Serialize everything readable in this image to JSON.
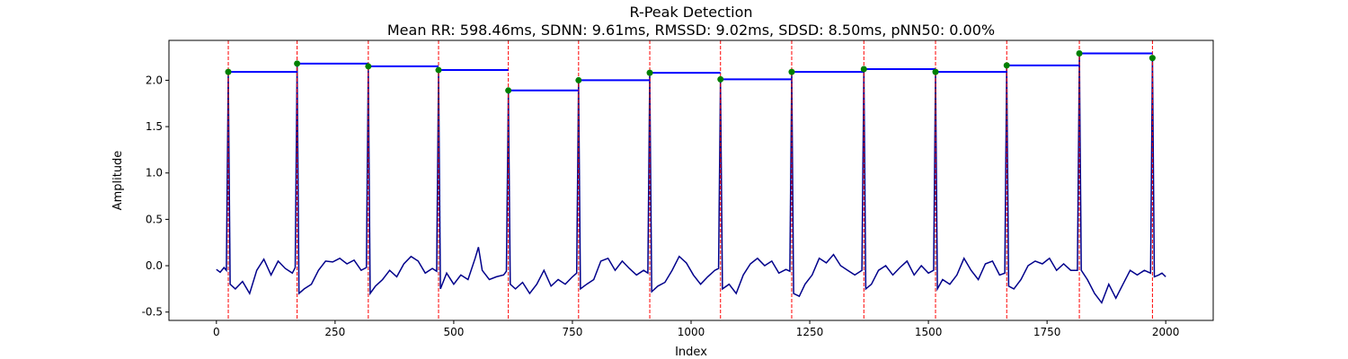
{
  "chart_data": {
    "type": "line",
    "title": "R-Peak Detection",
    "subtitle": "Mean RR: 598.46ms, SDNN: 9.61ms, RMSSD: 9.02ms, SDSD: 8.50ms, pNN50: 0.00%",
    "x_label": "Index",
    "y_label": "Amplitude",
    "xlim": [
      -100,
      2100
    ],
    "ylim": [
      -0.59,
      2.43
    ],
    "xticks": [
      0,
      250,
      500,
      750,
      1000,
      1250,
      1500,
      1750,
      2000
    ],
    "yticks": [
      -0.5,
      {
        "value": 0,
        "label": "0.0"
      },
      0.5,
      {
        "value": 1,
        "label": "1.0"
      },
      1.5,
      {
        "value": 2,
        "label": "2.0"
      }
    ],
    "series": [
      {
        "color": "#00008b",
        "x": [
          0,
          8,
          16,
          21,
          25,
          29,
          40,
          55,
          70,
          85,
          100,
          115,
          130,
          145,
          160,
          166,
          170,
          174,
          185,
          200,
          215,
          230,
          245,
          260,
          275,
          290,
          305,
          316,
          320,
          324,
          335,
          350,
          365,
          380,
          395,
          410,
          425,
          440,
          455,
          464,
          468,
          472,
          485,
          500,
          515,
          530,
          545,
          552,
          560,
          575,
          590,
          605,
          611,
          615,
          619,
          630,
          645,
          660,
          675,
          690,
          705,
          720,
          735,
          750,
          759,
          763,
          767,
          780,
          795,
          810,
          825,
          840,
          855,
          870,
          885,
          900,
          909,
          913,
          917,
          930,
          945,
          960,
          975,
          990,
          1005,
          1020,
          1035,
          1050,
          1058,
          1062,
          1066,
          1080,
          1095,
          1110,
          1125,
          1140,
          1155,
          1170,
          1185,
          1200,
          1208,
          1212,
          1216,
          1228,
          1240,
          1255,
          1270,
          1285,
          1300,
          1315,
          1330,
          1345,
          1360,
          1364,
          1368,
          1380,
          1395,
          1410,
          1425,
          1440,
          1455,
          1470,
          1485,
          1500,
          1511,
          1515,
          1519,
          1530,
          1545,
          1560,
          1575,
          1590,
          1605,
          1620,
          1635,
          1650,
          1661,
          1665,
          1669,
          1680,
          1695,
          1710,
          1725,
          1740,
          1755,
          1770,
          1785,
          1800,
          1814,
          1818,
          1822,
          1835,
          1850,
          1865,
          1880,
          1895,
          1910,
          1925,
          1940,
          1955,
          1968,
          1972,
          1976,
          1985,
          1992,
          2000
        ],
        "values": [
          -0.04,
          -0.07,
          -0.02,
          -0.05,
          2.09,
          -0.2,
          -0.25,
          -0.17,
          -0.3,
          -0.05,
          0.07,
          -0.1,
          0.05,
          -0.03,
          -0.08,
          -0.02,
          2.18,
          -0.3,
          -0.25,
          -0.2,
          -0.05,
          0.05,
          0.04,
          0.08,
          0.02,
          0.06,
          -0.05,
          -0.02,
          2.15,
          -0.3,
          -0.22,
          -0.15,
          -0.05,
          -0.12,
          0.02,
          0.1,
          0.05,
          -0.08,
          -0.03,
          -0.06,
          2.11,
          -0.25,
          -0.08,
          -0.2,
          -0.1,
          -0.15,
          0.08,
          0.2,
          -0.05,
          -0.15,
          -0.12,
          -0.1,
          -0.06,
          1.89,
          -0.2,
          -0.25,
          -0.18,
          -0.3,
          -0.2,
          -0.05,
          -0.22,
          -0.15,
          -0.2,
          -0.12,
          -0.08,
          2.0,
          -0.25,
          -0.2,
          -0.15,
          0.05,
          0.08,
          -0.05,
          0.05,
          -0.03,
          -0.1,
          -0.05,
          -0.08,
          2.08,
          -0.28,
          -0.22,
          -0.18,
          -0.05,
          0.1,
          0.03,
          -0.1,
          -0.2,
          -0.12,
          -0.05,
          -0.03,
          2.01,
          -0.25,
          -0.2,
          -0.3,
          -0.1,
          0.02,
          0.08,
          0.0,
          0.05,
          -0.08,
          -0.04,
          -0.06,
          2.09,
          -0.3,
          -0.33,
          -0.2,
          -0.1,
          0.08,
          0.03,
          0.12,
          0.0,
          -0.05,
          -0.1,
          -0.05,
          2.12,
          -0.25,
          -0.2,
          -0.05,
          0.0,
          -0.1,
          -0.02,
          0.05,
          -0.1,
          0.0,
          -0.08,
          -0.05,
          2.09,
          -0.25,
          -0.15,
          -0.2,
          -0.1,
          0.08,
          -0.05,
          -0.15,
          0.02,
          0.05,
          -0.1,
          -0.08,
          2.16,
          -0.22,
          -0.25,
          -0.15,
          0.0,
          0.05,
          0.02,
          0.08,
          -0.05,
          0.02,
          -0.05,
          -0.05,
          2.29,
          -0.05,
          -0.15,
          -0.3,
          -0.4,
          -0.2,
          -0.35,
          -0.2,
          -0.05,
          -0.1,
          -0.05,
          -0.08,
          2.24,
          -0.12,
          -0.1,
          -0.08,
          -0.12
        ]
      }
    ],
    "peaks": {
      "color": "green",
      "x": [
        25,
        170,
        320,
        468,
        615,
        763,
        913,
        1062,
        1212,
        1364,
        1515,
        1665,
        1818,
        1972
      ],
      "values": [
        2.09,
        2.18,
        2.15,
        2.11,
        1.89,
        2.0,
        2.08,
        2.01,
        2.09,
        2.12,
        2.09,
        2.16,
        2.29,
        2.24
      ]
    },
    "peak_line_color": "red",
    "rr_color": "blue"
  }
}
